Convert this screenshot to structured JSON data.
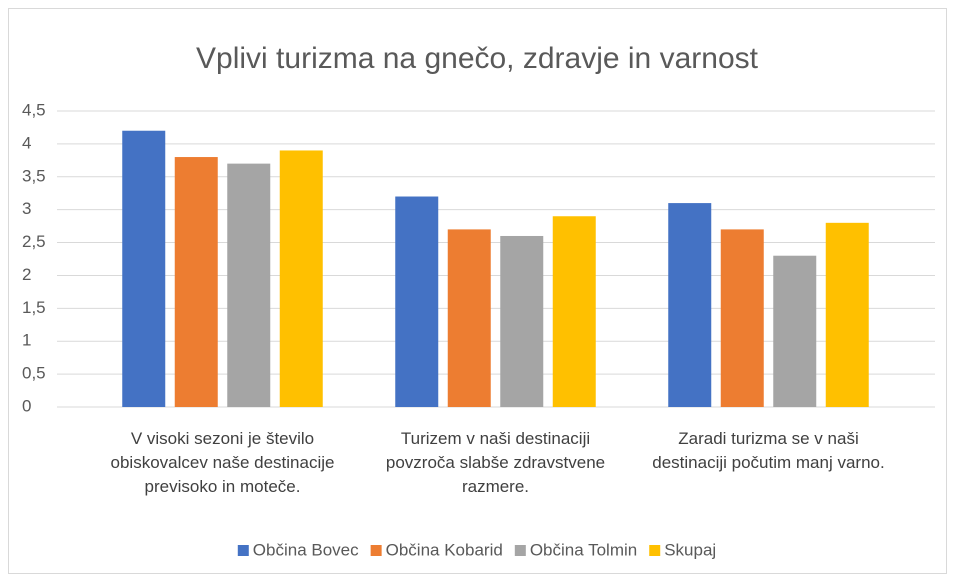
{
  "chart_data": {
    "type": "bar",
    "title": "Vplivi turizma na gnečo, zdravje in varnost",
    "categories": [
      "V visoki sezoni je število obiskovalcev naše destinacije previsoko in moteče.",
      "Turizem v naši destinaciji povzroča slabše zdravstvene razmere.",
      "Zaradi turizma se v naši destinaciji počutim manj varno."
    ],
    "series": [
      {
        "name": "Občina Bovec",
        "color": "#4472c4",
        "values": [
          4.2,
          3.2,
          3.1
        ]
      },
      {
        "name": "Občina Kobarid",
        "color": "#ed7d31",
        "values": [
          3.8,
          2.7,
          2.7
        ]
      },
      {
        "name": "Občina Tolmin",
        "color": "#a5a5a5",
        "values": [
          3.7,
          2.6,
          2.3
        ]
      },
      {
        "name": "Skupaj",
        "color": "#ffc000",
        "values": [
          3.9,
          2.9,
          2.8
        ]
      }
    ],
    "ylim": [
      0,
      4.5
    ],
    "yticks": [
      0,
      {
        "value": 0.5,
        "label": "0,5"
      },
      1,
      {
        "value": 1.5,
        "label": "1,5"
      },
      2,
      {
        "value": 2.5,
        "label": "2,5"
      },
      3,
      {
        "value": 3.5,
        "label": "3,5"
      },
      4,
      {
        "value": 4.5,
        "label": "4,5"
      }
    ],
    "grid": true,
    "legend": "bottom"
  }
}
